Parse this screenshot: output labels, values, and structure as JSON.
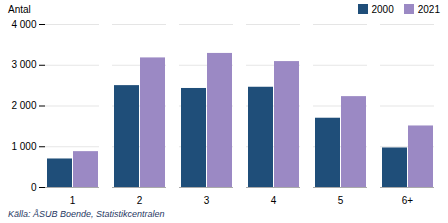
{
  "chart_data": {
    "type": "bar",
    "categories": [
      "1",
      "2",
      "3",
      "4",
      "5",
      "6+"
    ],
    "series": [
      {
        "name": "2000",
        "color": "#1F4E79",
        "values": [
          700,
          2500,
          2430,
          2460,
          1700,
          970
        ]
      },
      {
        "name": "2021",
        "color": "#9B89C4",
        "values": [
          880,
          3180,
          3290,
          3090,
          2230,
          1510
        ]
      }
    ],
    "ylabel": "Antal",
    "ylim": [
      0,
      4000
    ],
    "yticks": [
      0,
      {
        "value": 1000,
        "label": "1 000"
      },
      {
        "value": 2000,
        "label": "2 000"
      },
      {
        "value": 3000,
        "label": "3 000"
      },
      {
        "value": 4000,
        "label": "4 000"
      }
    ],
    "grid": true,
    "legend": "upper right",
    "source": "Källa: ÅSUB Boende, Statistikcentralen"
  }
}
